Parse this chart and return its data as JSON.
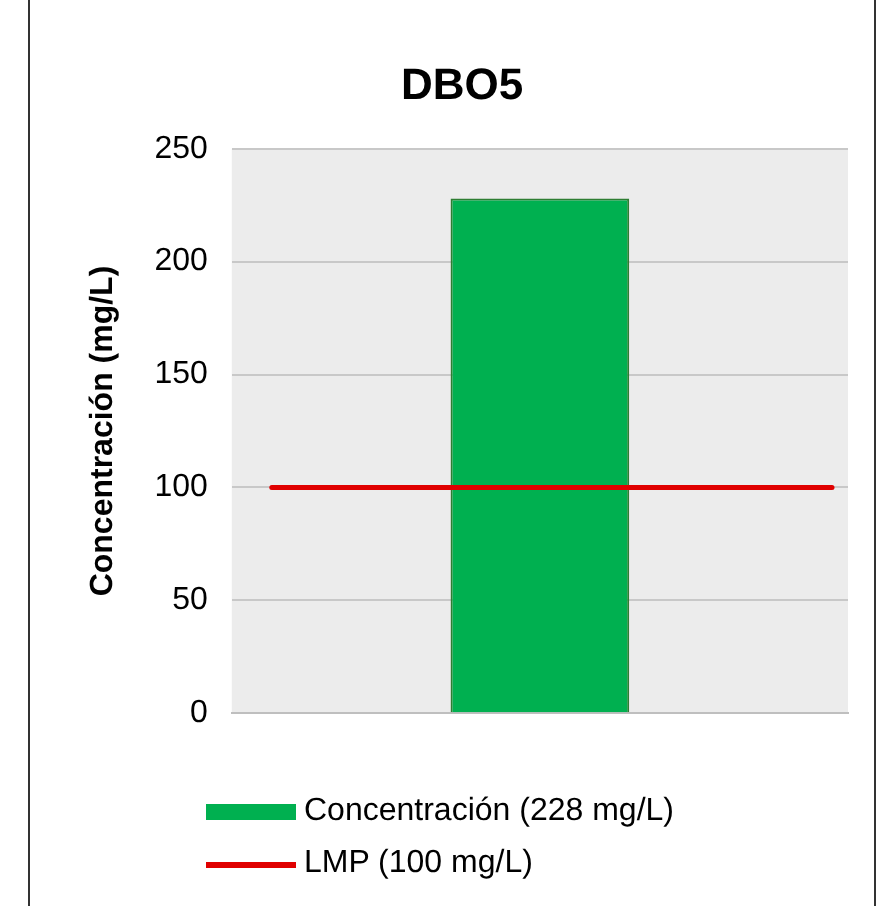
{
  "chart_data": {
    "type": "bar",
    "title": "DBO5",
    "ylabel": "Concentración (mg/L)",
    "categories": [
      null
    ],
    "series": [
      {
        "name": "Concentración (228 mg/L)",
        "color": "#00b050",
        "values": [
          228
        ]
      }
    ],
    "ref_lines": [
      {
        "axis": "y",
        "value": 100,
        "label": "LMP (100 mg/L)",
        "color": "#e00000",
        "line_style": "solid"
      }
    ],
    "ylim": [
      0,
      250
    ],
    "yticks": [
      0,
      50,
      100,
      150,
      200,
      250
    ],
    "grid": "y",
    "legend": "bottom"
  }
}
